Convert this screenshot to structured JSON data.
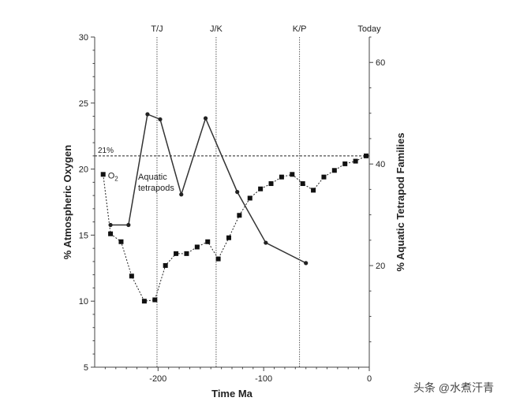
{
  "chart_data": {
    "type": "line",
    "xlabel": "Time Ma",
    "ylabel_left": "% Atmospheric Oxygen",
    "ylabel_right": "% Aquatic Tetrapod Families",
    "xlim": [
      -260,
      0
    ],
    "ylim_left": [
      5,
      30
    ],
    "ylim_right": [
      0,
      65
    ],
    "x_ticks": [
      -200,
      -100,
      0
    ],
    "y_left_ticks": [
      5,
      10,
      15,
      20,
      25,
      30
    ],
    "y_right_ticks": [
      20,
      40,
      60
    ],
    "events": [
      {
        "label": "T/J",
        "x": -201
      },
      {
        "label": "J/K",
        "x": -145
      },
      {
        "label": "K/P",
        "x": -66
      },
      {
        "label": "Today",
        "x": 0
      }
    ],
    "reference_line": {
      "label": "21%",
      "y": 21
    },
    "grid": false,
    "series": [
      {
        "name": "O2",
        "label_main": "O",
        "label_sub": "2",
        "axis": "left",
        "x": [
          -252,
          -245,
          -235,
          -225,
          -213,
          -203,
          -193,
          -183,
          -173,
          -163,
          -153,
          -143,
          -133,
          -123,
          -113,
          -103,
          -93,
          -83,
          -73,
          -63,
          -53,
          -43,
          -33,
          -23,
          -13,
          -3
        ],
        "y": [
          19.6,
          15.1,
          14.5,
          11.9,
          10.0,
          10.1,
          12.7,
          13.6,
          13.6,
          14.1,
          14.5,
          13.2,
          14.8,
          16.5,
          17.8,
          18.5,
          18.9,
          19.4,
          19.6,
          18.9,
          18.4,
          19.4,
          19.9,
          20.4,
          20.6,
          21.0
        ]
      },
      {
        "name": "Aquatic tetrapods",
        "label_line1": "Aquatic",
        "label_line2": "tetrapods",
        "axis": "right",
        "x": [
          -245,
          -228,
          -210,
          -198,
          -178,
          -155,
          -125,
          -98,
          -60
        ],
        "y": [
          28.0,
          28.0,
          49.8,
          48.8,
          34.0,
          49.0,
          34.5,
          24.5,
          20.5
        ]
      }
    ]
  },
  "watermark": "头条 @水煮汗青"
}
